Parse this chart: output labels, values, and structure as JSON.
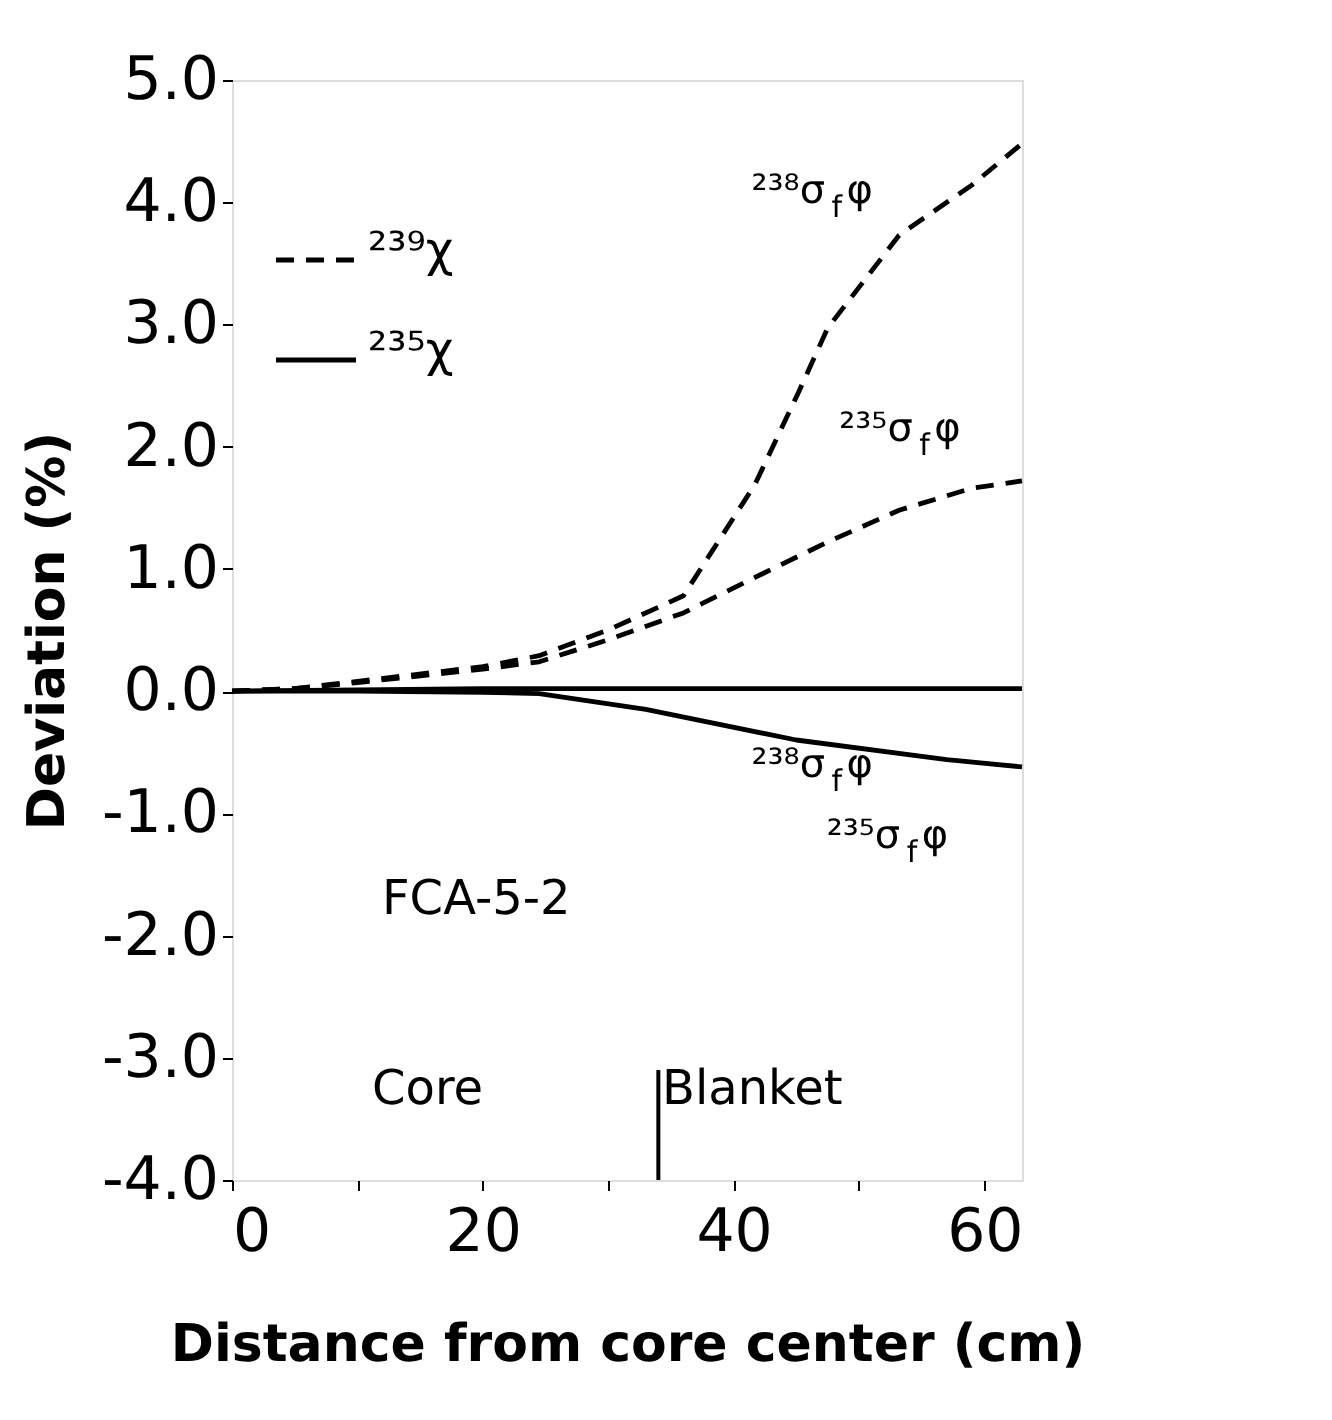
{
  "chart_data": {
    "type": "line",
    "xlabel": "Distance from core center (cm)",
    "ylabel": "Deviation   (%)",
    "xlim": [
      0,
      63
    ],
    "xticks": [
      0,
      {
        "value": 10,
        "label": null
      },
      20,
      {
        "value": 30,
        "label": null
      },
      40,
      {
        "value": 50,
        "label": null
      },
      60
    ],
    "ylim": [
      -4,
      5
    ],
    "yticks": [
      {
        "value": -4,
        "label": "-4.0"
      },
      {
        "value": -3,
        "label": "-3.0"
      },
      {
        "value": -2,
        "label": "-2.0"
      },
      {
        "value": -1,
        "label": "-1.0"
      },
      {
        "value": 0,
        "label": "0.0"
      },
      {
        "value": 1,
        "label": "1.0"
      },
      {
        "value": 2,
        "label": "2.0"
      },
      {
        "value": 3,
        "label": "3.0"
      },
      {
        "value": 4,
        "label": "4.0"
      },
      {
        "value": 5,
        "label": "5.0"
      }
    ],
    "grid": false,
    "legend": "top left",
    "series": [
      {
        "name": "²³⁹χ",
        "color": "#000000",
        "line_style": "dashed",
        "x": [
          0,
          5,
          10,
          20,
          24.5,
          30,
          36,
          41.7,
          45.2,
          47.5,
          53.2,
          59,
          63
        ],
        "values": [
          0,
          0.02,
          0.08,
          0.2,
          0.29,
          0.5,
          0.78,
          1.69,
          2.45,
          2.97,
          3.73,
          4.14,
          4.48
        ]
      },
      {
        "color": "#000000",
        "line_style": "dashed",
        "x": [
          0,
          5,
          10,
          20,
          24.5,
          30,
          36,
          41.7,
          47.5,
          53.2,
          59,
          63
        ],
        "values": [
          0,
          0.02,
          0.07,
          0.18,
          0.24,
          0.42,
          0.64,
          0.93,
          1.22,
          1.48,
          1.66,
          1.72
        ]
      },
      {
        "name": "²³⁵χ",
        "color": "#000000",
        "line_style": "solid",
        "x": [
          0,
          10,
          20,
          30,
          40,
          50,
          63
        ],
        "values": [
          0,
          0.01,
          0.02,
          0.02,
          0.02,
          0.02,
          0.02
        ]
      },
      {
        "color": "#000000",
        "line_style": "solid",
        "x": [
          0,
          10,
          20,
          24.5,
          33,
          45,
          57,
          63
        ],
        "values": [
          0,
          0,
          -0.01,
          -0.02,
          -0.15,
          -0.4,
          -0.56,
          -0.62
        ]
      }
    ],
    "ref_lines": [
      {
        "axis": "x",
        "value": 34,
        "color": "#000000"
      }
    ],
    "annotations": [
      {
        "text": "²³⁸σ$_{f}$φ",
        "x": 51,
        "y": 3.6
      },
      {
        "text": "²³⁵σ$_{f}$φ",
        "x": 58,
        "y": 1.65
      },
      {
        "text": "²³⁸σ$_{f}$φ",
        "x": 51,
        "y": 0.02
      },
      {
        "text": "²³⁵σ$_{f}$φ",
        "x": 57,
        "y": -0.56
      },
      "FCA-5-2",
      "Core",
      "Blanket"
    ]
  }
}
